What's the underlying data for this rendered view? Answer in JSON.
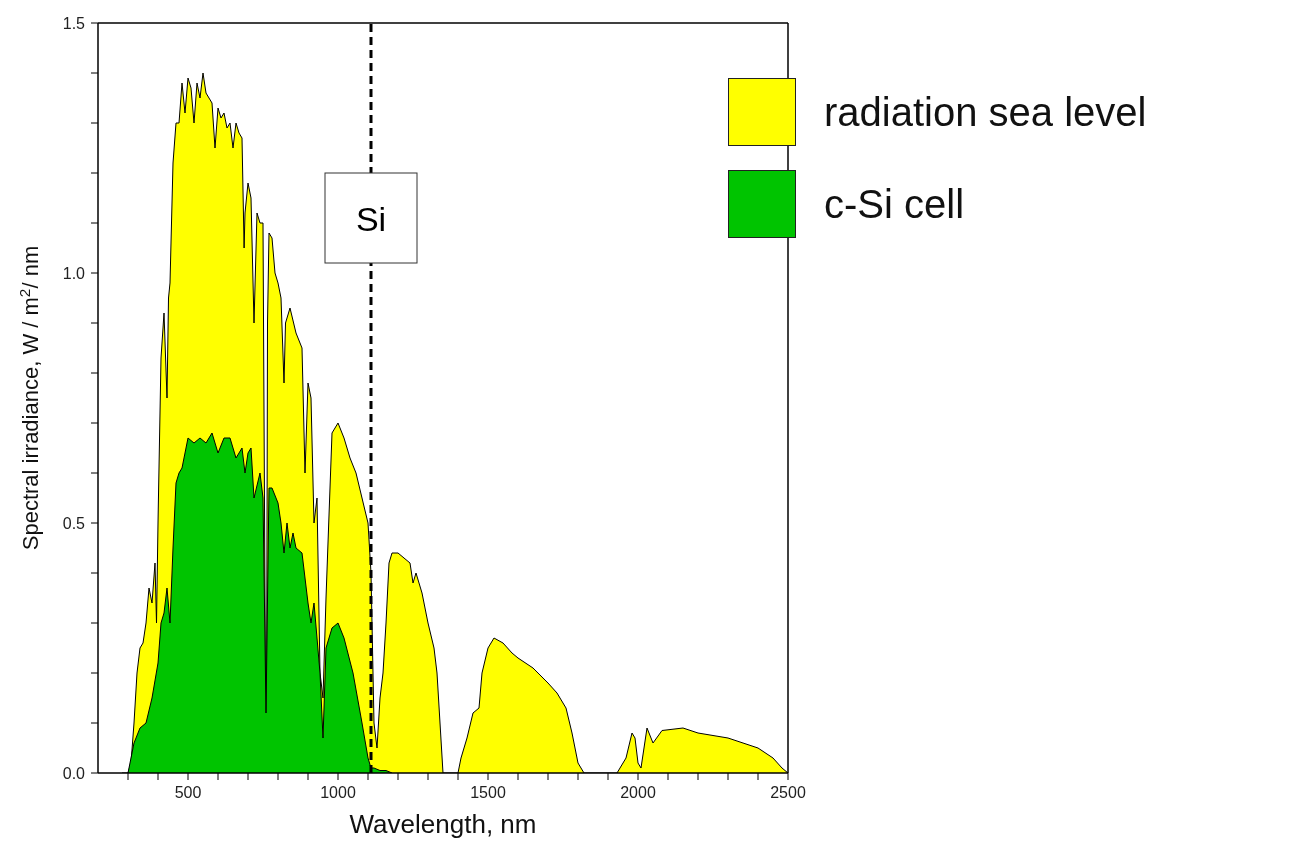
{
  "chart_data": {
    "type": "area",
    "xlabel": "Wavelength, nm",
    "ylabel": "Spectral irradiance, W / m$^{2}$/ nm",
    "xlim": [
      200,
      2500
    ],
    "ylim": [
      0,
      1.5
    ],
    "xticks": [
      {
        "value": 300,
        "label": null
      },
      {
        "value": 400,
        "label": null
      },
      500,
      {
        "value": 600,
        "label": null
      },
      {
        "value": 700,
        "label": null
      },
      {
        "value": 800,
        "label": null
      },
      {
        "value": 900,
        "label": null
      },
      1000,
      {
        "value": 1100,
        "label": null
      },
      {
        "value": 1200,
        "label": null
      },
      {
        "value": 1300,
        "label": null
      },
      {
        "value": 1400,
        "label": null
      },
      1500,
      {
        "value": 1600,
        "label": null
      },
      {
        "value": 1700,
        "label": null
      },
      {
        "value": 1800,
        "label": null
      },
      {
        "value": 1900,
        "label": null
      },
      2000,
      {
        "value": 2100,
        "label": null
      },
      {
        "value": 2200,
        "label": null
      },
      {
        "value": 2300,
        "label": null
      },
      {
        "value": 2400,
        "label": null
      },
      2500
    ],
    "yticks": [
      {
        "value": 0,
        "label": "0.0"
      },
      {
        "value": 0.1,
        "label": null
      },
      {
        "value": 0.2,
        "label": null
      },
      {
        "value": 0.3,
        "label": null
      },
      {
        "value": 0.4,
        "label": null
      },
      {
        "value": 0.5,
        "label": "0.5"
      },
      {
        "value": 0.6,
        "label": null
      },
      {
        "value": 0.7,
        "label": null
      },
      {
        "value": 0.8,
        "label": null
      },
      {
        "value": 0.9,
        "label": null
      },
      {
        "value": 1,
        "label": "1.0"
      },
      {
        "value": 1.1,
        "label": null
      },
      {
        "value": 1.2,
        "label": null
      },
      {
        "value": 1.3,
        "label": null
      },
      {
        "value": 1.4,
        "label": null
      },
      {
        "value": 1.5,
        "label": "1.5"
      }
    ],
    "grid": false,
    "legend": "top right",
    "ref_lines": [
      {
        "axis": "x",
        "value": 1110,
        "label": "Si",
        "line_style": "dashed",
        "color": "#000000"
      }
    ],
    "series": [
      {
        "name": "radiation sea level",
        "color": "#ffff00",
        "x": [
          280,
          300,
          310,
          320,
          330,
          340,
          350,
          360,
          370,
          380,
          390,
          395,
          400,
          410,
          420,
          430,
          435,
          440,
          450,
          460,
          470,
          480,
          490,
          500,
          510,
          520,
          530,
          540,
          550,
          560,
          570,
          580,
          590,
          600,
          610,
          620,
          630,
          640,
          650,
          660,
          670,
          680,
          687,
          690,
          700,
          710,
          720,
          730,
          740,
          750,
          758,
          762,
          765,
          770,
          780,
          790,
          800,
          810,
          820,
          825,
          840,
          860,
          880,
          890,
          900,
          910,
          920,
          930,
          940,
          950,
          960,
          980,
          1000,
          1020,
          1040,
          1060,
          1080,
          1100,
          1110,
          1120,
          1130,
          1140,
          1150,
          1160,
          1170,
          1180,
          1200,
          1220,
          1240,
          1250,
          1260,
          1280,
          1300,
          1320,
          1330,
          1340,
          1350,
          1400,
          1410,
          1430,
          1450,
          1470,
          1480,
          1500,
          1520,
          1550,
          1580,
          1600,
          1650,
          1700,
          1730,
          1760,
          1780,
          1800,
          1820,
          1930,
          1960,
          1980,
          1990,
          2000,
          2010,
          2030,
          2050,
          2080,
          2150,
          2200,
          2300,
          2400,
          2450,
          2480,
          2500
        ],
        "values": [
          0,
          0,
          0.02,
          0.1,
          0.2,
          0.25,
          0.26,
          0.3,
          0.37,
          0.34,
          0.42,
          0.3,
          0.5,
          0.83,
          0.92,
          0.75,
          0.95,
          0.98,
          1.22,
          1.3,
          1.3,
          1.38,
          1.32,
          1.39,
          1.37,
          1.3,
          1.38,
          1.35,
          1.4,
          1.36,
          1.35,
          1.34,
          1.25,
          1.33,
          1.31,
          1.32,
          1.29,
          1.3,
          1.25,
          1.3,
          1.28,
          1.27,
          1.05,
          1.12,
          1.18,
          1.15,
          0.9,
          1.12,
          1.1,
          1.1,
          0.2,
          0.12,
          0.9,
          1.08,
          1.07,
          1,
          0.98,
          0.95,
          0.78,
          0.9,
          0.93,
          0.88,
          0.85,
          0.6,
          0.78,
          0.75,
          0.5,
          0.55,
          0.2,
          0.15,
          0.35,
          0.68,
          0.7,
          0.67,
          0.63,
          0.6,
          0.55,
          0.5,
          0.4,
          0.1,
          0.05,
          0.15,
          0.2,
          0.3,
          0.42,
          0.44,
          0.44,
          0.43,
          0.42,
          0.38,
          0.4,
          0.36,
          0.3,
          0.25,
          0.2,
          0.1,
          0,
          0,
          0.03,
          0.07,
          0.12,
          0.13,
          0.2,
          0.25,
          0.27,
          0.26,
          0.24,
          0.23,
          0.21,
          0.18,
          0.16,
          0.13,
          0.08,
          0.02,
          0,
          0,
          0.03,
          0.08,
          0.07,
          0.02,
          0.01,
          0.09,
          0.06,
          0.085,
          0.09,
          0.08,
          0.07,
          0.05,
          0.03,
          0.01,
          0
        ]
      },
      {
        "name": "c-Si cell",
        "color": "#00c400",
        "x": [
          300,
          320,
          340,
          360,
          380,
          400,
          410,
          420,
          430,
          440,
          450,
          460,
          470,
          480,
          500,
          520,
          540,
          560,
          580,
          600,
          620,
          640,
          660,
          680,
          690,
          700,
          710,
          720,
          740,
          750,
          760,
          770,
          780,
          800,
          810,
          820,
          830,
          840,
          850,
          860,
          880,
          900,
          910,
          920,
          940,
          950,
          960,
          980,
          1000,
          1020,
          1050,
          1080,
          1100,
          1110,
          1120,
          1140,
          1160,
          1180
        ],
        "values": [
          0,
          0.06,
          0.09,
          0.1,
          0.15,
          0.22,
          0.3,
          0.32,
          0.37,
          0.3,
          0.45,
          0.58,
          0.6,
          0.61,
          0.67,
          0.66,
          0.67,
          0.66,
          0.68,
          0.64,
          0.67,
          0.67,
          0.63,
          0.65,
          0.6,
          0.64,
          0.65,
          0.55,
          0.6,
          0.55,
          0.12,
          0.57,
          0.57,
          0.54,
          0.5,
          0.44,
          0.5,
          0.45,
          0.48,
          0.45,
          0.44,
          0.34,
          0.3,
          0.34,
          0.2,
          0.07,
          0.25,
          0.29,
          0.3,
          0.27,
          0.2,
          0.1,
          0.03,
          0.01,
          0.01,
          0.005,
          0.005,
          0
        ]
      }
    ]
  }
}
